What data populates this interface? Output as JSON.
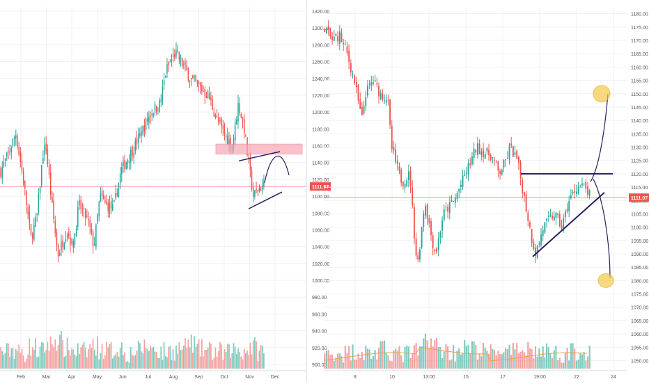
{
  "colors": {
    "up": "#26a69a",
    "down": "#ef5350",
    "up_volume": "#7fcbbf",
    "down_volume": "#f4a3a1",
    "price_line": "#ef5350",
    "price_tag": "#ef5350",
    "zone": "#f7a8b5",
    "drawing": "#2b1d5e",
    "target": "#f7c948",
    "vol_ma": "#f0a040",
    "grid": "#eef1f5",
    "axis_text": "#555555"
  },
  "chart_data": [
    {
      "type": "candlestick",
      "name": "left-daily",
      "y_ticks": [
        "1320.00",
        "1300.00",
        "1280.00",
        "1260.00",
        "1240.00",
        "1220.00",
        "1200.00",
        "1180.00",
        "1160.00",
        "1140.00",
        "1120.00",
        "1100.00",
        "1080.00",
        "1060.00",
        "1040.00",
        "1020.00",
        "1000.00",
        "980.00",
        "960.00",
        "940.00",
        "920.00",
        "900.00"
      ],
      "ylim": [
        895,
        1325
      ],
      "x_ticks": [
        "Feb",
        "Mar",
        "Apr",
        "May",
        "Jun",
        "Jul",
        "Aug",
        "Sep",
        "Oct",
        "Nov",
        "Dec"
      ],
      "last_price": "1111.57",
      "price_path": [
        [
          0,
          1130
        ],
        [
          5,
          1150
        ],
        [
          10,
          1175
        ],
        [
          15,
          1120
        ],
        [
          20,
          1050
        ],
        [
          24,
          1075
        ],
        [
          28,
          1150
        ],
        [
          30,
          1160
        ],
        [
          34,
          1090
        ],
        [
          38,
          1030
        ],
        [
          44,
          1060
        ],
        [
          48,
          1040
        ],
        [
          52,
          1090
        ],
        [
          58,
          1070
        ],
        [
          62,
          1040
        ],
        [
          66,
          1100
        ],
        [
          70,
          1090
        ],
        [
          75,
          1085
        ],
        [
          80,
          1130
        ],
        [
          86,
          1150
        ],
        [
          92,
          1170
        ],
        [
          100,
          1200
        ],
        [
          106,
          1210
        ],
        [
          110,
          1250
        ],
        [
          116,
          1270
        ],
        [
          120,
          1260
        ],
        [
          126,
          1240
        ],
        [
          132,
          1230
        ],
        [
          138,
          1220
        ],
        [
          144,
          1190
        ],
        [
          150,
          1170
        ],
        [
          154,
          1160
        ],
        [
          158,
          1210
        ],
        [
          162,
          1180
        ],
        [
          164,
          1150
        ],
        [
          168,
          1100
        ],
        [
          172,
          1110
        ],
        [
          175,
          1112
        ]
      ],
      "volume_scale": [
        0.25,
        0.35,
        0.2,
        0.45,
        0.3,
        0.55,
        0.7,
        0.4,
        0.3,
        0.25,
        0.5,
        0.35,
        0.3,
        0.4,
        0.2,
        0.3,
        0.45,
        0.35,
        0.25,
        0.3,
        0.4,
        0.6,
        0.35,
        0.3,
        0.25,
        0.2,
        0.35,
        0.3,
        0.45,
        0.3
      ],
      "annotations": {
        "resistance_zone": [
          1150,
          1162
        ],
        "support_line": [
          [
            1092,
            1078
          ],
          [
            1118,
            1100
          ]
        ],
        "wedge_upper": [
          [
            1105,
            1137
          ],
          [
            1152,
            1152
          ]
        ],
        "projection": "arc"
      }
    },
    {
      "type": "candlestick",
      "name": "right-intraday",
      "y_ticks": [
        "1180.00",
        "1175.00",
        "1170.00",
        "1165.00",
        "1160.00",
        "1155.00",
        "1150.00",
        "1145.00",
        "1140.00",
        "1135.00",
        "1130.00",
        "1125.00",
        "1120.00",
        "1115.00",
        "1110.00",
        "1105.00",
        "1100.00",
        "1095.00",
        "1090.00",
        "1085.00",
        "1080.00",
        "1075.00",
        "1070.00",
        "1065.00",
        "1060.00",
        "1055.00",
        "1050.00"
      ],
      "ylim": [
        1047,
        1182
      ],
      "x_ticks": [
        "8",
        "10",
        "13:00",
        "15",
        "17",
        "19:00",
        "22",
        "24"
      ],
      "last_price": "1111.07",
      "price_path": [
        [
          0,
          1175
        ],
        [
          4,
          1170
        ],
        [
          8,
          1172
        ],
        [
          12,
          1165
        ],
        [
          16,
          1155
        ],
        [
          20,
          1140
        ],
        [
          22,
          1150
        ],
        [
          26,
          1155
        ],
        [
          30,
          1150
        ],
        [
          34,
          1148
        ],
        [
          36,
          1130
        ],
        [
          40,
          1120
        ],
        [
          42,
          1117
        ],
        [
          46,
          1120
        ],
        [
          48,
          1100
        ],
        [
          50,
          1085
        ],
        [
          54,
          1110
        ],
        [
          58,
          1095
        ],
        [
          60,
          1090
        ],
        [
          64,
          1105
        ],
        [
          70,
          1110
        ],
        [
          76,
          1120
        ],
        [
          82,
          1130
        ],
        [
          86,
          1128
        ],
        [
          90,
          1127
        ],
        [
          94,
          1120
        ],
        [
          98,
          1125
        ],
        [
          100,
          1130
        ],
        [
          104,
          1125
        ],
        [
          108,
          1110
        ],
        [
          112,
          1095
        ],
        [
          114,
          1090
        ],
        [
          118,
          1100
        ],
        [
          124,
          1105
        ],
        [
          128,
          1100
        ],
        [
          132,
          1110
        ],
        [
          136,
          1115
        ],
        [
          140,
          1115
        ],
        [
          143,
          1112
        ]
      ],
      "volume_scale": [
        0.2,
        0.3,
        0.25,
        0.35,
        0.3,
        0.25,
        0.4,
        0.3,
        0.2,
        0.25,
        0.3,
        0.9,
        0.6,
        0.4,
        0.3,
        0.5,
        0.45,
        0.35,
        0.3,
        0.4,
        0.25,
        0.3,
        0.55,
        0.35,
        0.3,
        0.4,
        0.25,
        0.3,
        0.35,
        0.2
      ],
      "annotations": {
        "resistance_line": [
          [
            1120,
            1120
          ]
        ],
        "support_line": [
          [
            1088,
            1112
          ]
        ],
        "target_up": "1149",
        "target_down": "1080",
        "projection": "branches"
      }
    }
  ]
}
